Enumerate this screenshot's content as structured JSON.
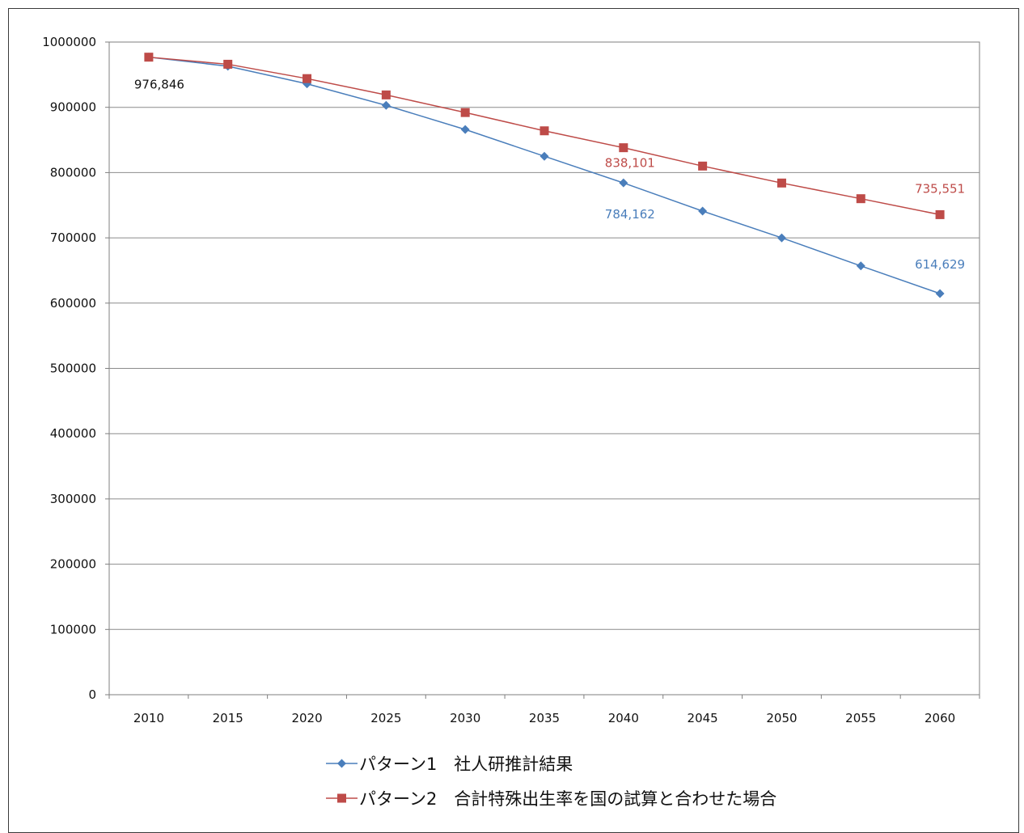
{
  "chart_data": {
    "type": "line",
    "title": "",
    "xlabel": "",
    "ylabel": "",
    "categories": [
      "2010",
      "2015",
      "2020",
      "2025",
      "2030",
      "2035",
      "2040",
      "2045",
      "2050",
      "2055",
      "2060"
    ],
    "y_ticks": [
      "0",
      "100000",
      "200000",
      "300000",
      "400000",
      "500000",
      "600000",
      "700000",
      "800000",
      "900000",
      "1000000"
    ],
    "ylim": [
      0,
      1000000
    ],
    "grid": true,
    "legend_position": "bottom",
    "series": [
      {
        "name": "パターン1　社人研推計結果",
        "color": "#4a7ebb",
        "marker": "diamond",
        "values": [
          976846,
          963000,
          936000,
          903000,
          866000,
          825000,
          784162,
          741000,
          700000,
          657000,
          614629
        ],
        "labels": [
          {
            "index": 6,
            "text": "784,162"
          },
          {
            "index": 10,
            "text": "614,629"
          }
        ]
      },
      {
        "name": "パターン2　合計特殊出生率を国の試算と合わせた場合",
        "color": "#be4b48",
        "marker": "square",
        "values": [
          976846,
          966000,
          944000,
          919000,
          892000,
          864000,
          838101,
          810000,
          784000,
          760000,
          735551
        ],
        "labels": [
          {
            "index": 6,
            "text": "838,101"
          },
          {
            "index": 10,
            "text": "735,551"
          }
        ]
      }
    ],
    "annotations": [
      {
        "index": 0,
        "text": "976,846",
        "color": "#111111"
      }
    ]
  }
}
